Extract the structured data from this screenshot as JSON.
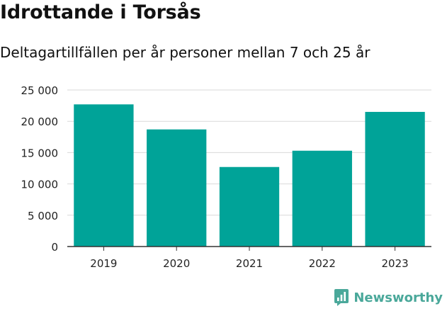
{
  "header": {
    "title": "Idrottande i Torsås",
    "subtitle": "Deltagartillfällen per år personer mellan 7 och 25 år"
  },
  "brand": {
    "name": "Newsworthy",
    "color": "#4aa89a"
  },
  "colors": {
    "bar": "#00a398",
    "grid": "#d9d9d9",
    "axis": "#333333",
    "text": "#222222"
  },
  "chart_data": {
    "type": "bar",
    "title": "Idrottande i Torsås",
    "subtitle": "Deltagartillfällen per år personer mellan 7 och 25 år",
    "categories": [
      "2019",
      "2020",
      "2021",
      "2022",
      "2023"
    ],
    "values": [
      22700,
      18700,
      12700,
      15300,
      21500
    ],
    "ylim": [
      0,
      25000
    ],
    "yticks": [
      0,
      5000,
      10000,
      15000,
      20000,
      25000
    ],
    "ytick_labels": [
      "0",
      "5 000",
      "10 000",
      "15 000",
      "20 000",
      "25 000"
    ],
    "xlabel": "",
    "ylabel": "",
    "grid": true,
    "legend": "none"
  }
}
